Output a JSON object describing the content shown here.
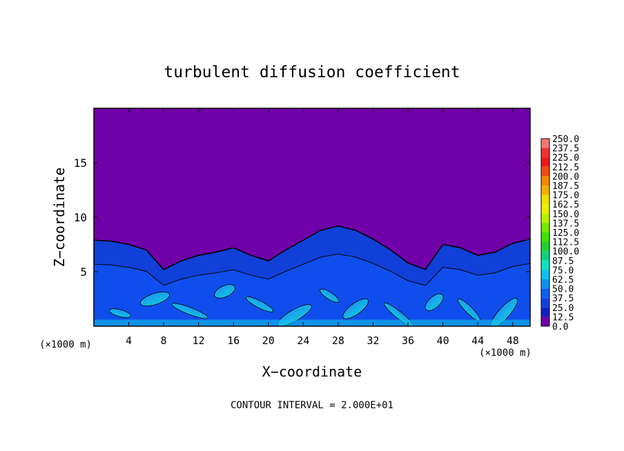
{
  "chart_data": {
    "type": "heatmap",
    "title": "turbulent diffusion coefficient",
    "xlabel": "X−coordinate",
    "ylabel": "Z−coordinate",
    "x_unit_left": "(×1000 m)",
    "x_unit_right": "(×1000 m)",
    "footer": "CONTOUR INTERVAL = 2.000E+01",
    "xlim": [
      0,
      50
    ],
    "ylim": [
      0,
      20
    ],
    "x_ticks": [
      "4",
      "8",
      "12",
      "16",
      "20",
      "24",
      "28",
      "32",
      "36",
      "40",
      "44",
      "48"
    ],
    "x_tick_values": [
      4,
      8,
      12,
      16,
      20,
      24,
      28,
      32,
      36,
      40,
      44,
      48
    ],
    "y_ticks": [
      "5",
      "10",
      "15"
    ],
    "y_tick_values": [
      5,
      10,
      15
    ],
    "colorbar": {
      "levels": [
        "250.0",
        "237.5",
        "225.0",
        "212.5",
        "200.0",
        "187.5",
        "175.0",
        "162.5",
        "150.0",
        "137.5",
        "125.0",
        "112.5",
        "100.0",
        "87.5",
        "75.0",
        "62.5",
        "50.0",
        "37.5",
        "25.0",
        "12.5",
        "0.0"
      ],
      "colors": [
        "#f07878",
        "#f03030",
        "#f01818",
        "#f04a10",
        "#f08a00",
        "#f0b000",
        "#f0e000",
        "#e8f000",
        "#b8f000",
        "#78e800",
        "#40e000",
        "#20d030",
        "#10d080",
        "#10e0c0",
        "#10c0f0",
        "#1090f0",
        "#1060f0",
        "#1040e0",
        "#1020c0",
        "#100a90",
        "#7000a8"
      ]
    },
    "background_color": "#7000a8",
    "boundary_layer_profile": {
      "x": [
        0,
        2,
        4,
        6,
        8,
        10,
        12,
        14,
        16,
        18,
        20,
        22,
        24,
        26,
        28,
        30,
        32,
        34,
        36,
        38,
        40,
        42,
        44,
        46,
        48,
        50
      ],
      "z": [
        7.9,
        7.8,
        7.5,
        7.0,
        5.2,
        6.0,
        6.5,
        6.8,
        7.2,
        6.5,
        6.0,
        7.0,
        7.9,
        8.8,
        9.2,
        8.8,
        8.0,
        7.0,
        5.8,
        5.2,
        7.5,
        7.2,
        6.5,
        6.8,
        7.6,
        8.0
      ]
    },
    "grid": false
  }
}
